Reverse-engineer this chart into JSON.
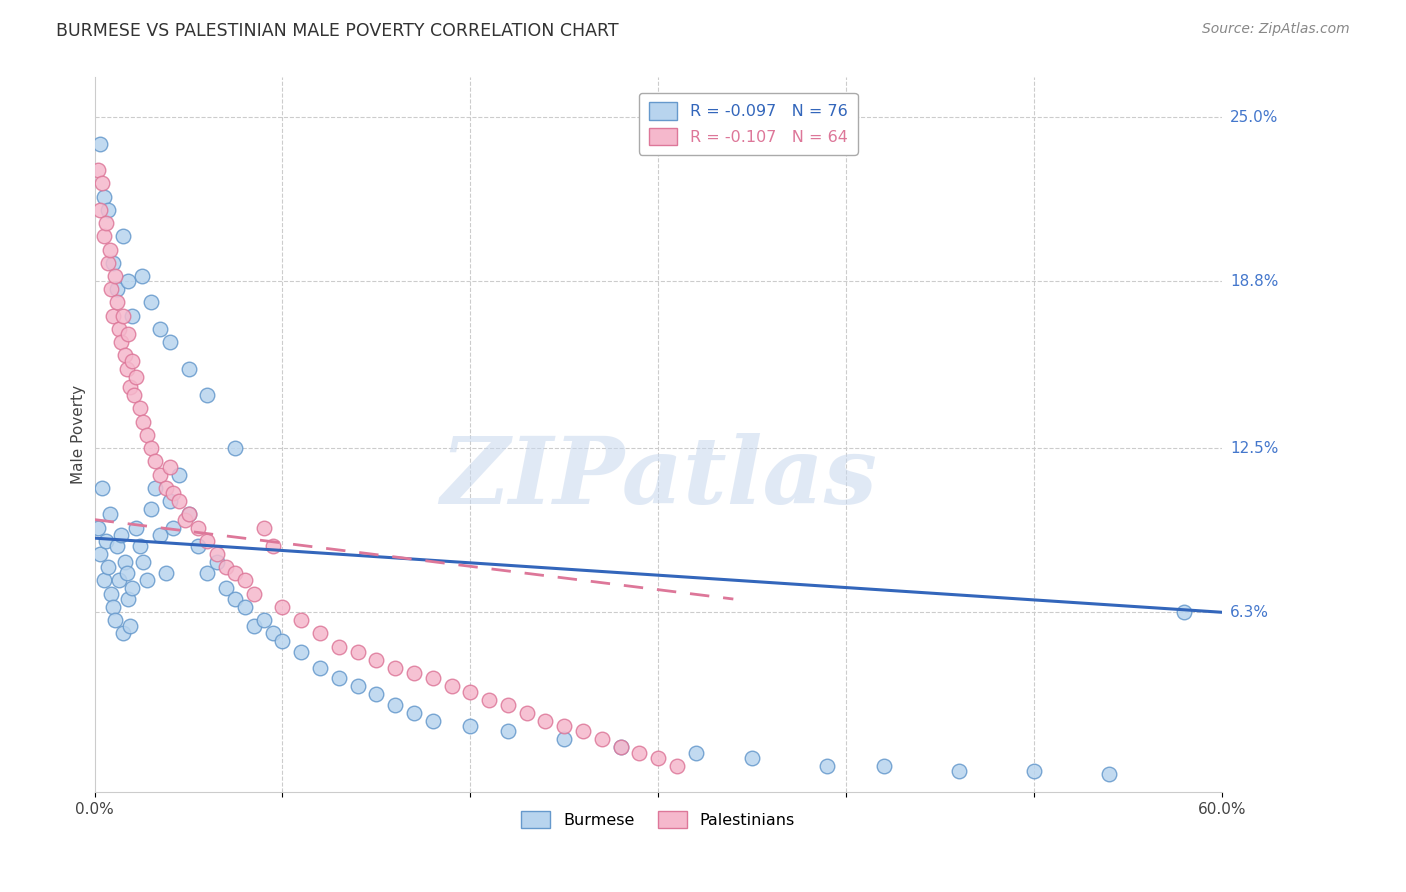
{
  "title": "BURMESE VS PALESTINIAN MALE POVERTY CORRELATION CHART",
  "source": "Source: ZipAtlas.com",
  "ylabel": "Male Poverty",
  "right_yticks": [
    "25.0%",
    "18.8%",
    "12.5%",
    "6.3%"
  ],
  "right_ytick_vals": [
    0.25,
    0.188,
    0.125,
    0.063
  ],
  "xmin": 0.0,
  "xmax": 0.6,
  "ymin": -0.005,
  "ymax": 0.265,
  "watermark_text": "ZIPatlas",
  "burmese_color": "#b8d4ee",
  "burmese_edge": "#6699cc",
  "palestinian_color": "#f5b8cc",
  "palestinian_edge": "#dd7799",
  "line_blue": "#3366bb",
  "line_pink": "#dd7799",
  "legend_r1": "R = -0.097   N = 76",
  "legend_r2": "R = -0.107   N = 64",
  "blue_line_x": [
    0.0,
    0.6
  ],
  "blue_line_y": [
    0.091,
    0.063
  ],
  "pink_line_x": [
    0.0,
    0.34
  ],
  "pink_line_y": [
    0.098,
    0.068
  ],
  "burmese_x": [
    0.002,
    0.003,
    0.004,
    0.005,
    0.006,
    0.007,
    0.008,
    0.009,
    0.01,
    0.011,
    0.012,
    0.013,
    0.014,
    0.015,
    0.016,
    0.017,
    0.018,
    0.019,
    0.02,
    0.022,
    0.024,
    0.026,
    0.028,
    0.03,
    0.032,
    0.035,
    0.038,
    0.04,
    0.042,
    0.045,
    0.05,
    0.055,
    0.06,
    0.065,
    0.07,
    0.075,
    0.08,
    0.085,
    0.09,
    0.095,
    0.1,
    0.11,
    0.12,
    0.13,
    0.14,
    0.15,
    0.16,
    0.17,
    0.18,
    0.2,
    0.22,
    0.25,
    0.28,
    0.32,
    0.35,
    0.39,
    0.42,
    0.46,
    0.5,
    0.54,
    0.58,
    0.003,
    0.005,
    0.007,
    0.01,
    0.012,
    0.015,
    0.018,
    0.02,
    0.025,
    0.03,
    0.035,
    0.04,
    0.05,
    0.06,
    0.075
  ],
  "burmese_y": [
    0.095,
    0.085,
    0.11,
    0.075,
    0.09,
    0.08,
    0.1,
    0.07,
    0.065,
    0.06,
    0.088,
    0.075,
    0.092,
    0.055,
    0.082,
    0.078,
    0.068,
    0.058,
    0.072,
    0.095,
    0.088,
    0.082,
    0.075,
    0.102,
    0.11,
    0.092,
    0.078,
    0.105,
    0.095,
    0.115,
    0.1,
    0.088,
    0.078,
    0.082,
    0.072,
    0.068,
    0.065,
    0.058,
    0.06,
    0.055,
    0.052,
    0.048,
    0.042,
    0.038,
    0.035,
    0.032,
    0.028,
    0.025,
    0.022,
    0.02,
    0.018,
    0.015,
    0.012,
    0.01,
    0.008,
    0.005,
    0.005,
    0.003,
    0.003,
    0.002,
    0.063,
    0.24,
    0.22,
    0.215,
    0.195,
    0.185,
    0.205,
    0.188,
    0.175,
    0.19,
    0.18,
    0.17,
    0.165,
    0.155,
    0.145,
    0.125
  ],
  "palestinian_x": [
    0.002,
    0.003,
    0.004,
    0.005,
    0.006,
    0.007,
    0.008,
    0.009,
    0.01,
    0.011,
    0.012,
    0.013,
    0.014,
    0.015,
    0.016,
    0.017,
    0.018,
    0.019,
    0.02,
    0.021,
    0.022,
    0.024,
    0.026,
    0.028,
    0.03,
    0.032,
    0.035,
    0.038,
    0.04,
    0.042,
    0.045,
    0.048,
    0.05,
    0.055,
    0.06,
    0.065,
    0.07,
    0.075,
    0.08,
    0.085,
    0.09,
    0.095,
    0.1,
    0.11,
    0.12,
    0.13,
    0.14,
    0.15,
    0.16,
    0.17,
    0.18,
    0.19,
    0.2,
    0.21,
    0.22,
    0.23,
    0.24,
    0.25,
    0.26,
    0.27,
    0.28,
    0.29,
    0.3,
    0.31
  ],
  "palestinian_y": [
    0.23,
    0.215,
    0.225,
    0.205,
    0.21,
    0.195,
    0.2,
    0.185,
    0.175,
    0.19,
    0.18,
    0.17,
    0.165,
    0.175,
    0.16,
    0.155,
    0.168,
    0.148,
    0.158,
    0.145,
    0.152,
    0.14,
    0.135,
    0.13,
    0.125,
    0.12,
    0.115,
    0.11,
    0.118,
    0.108,
    0.105,
    0.098,
    0.1,
    0.095,
    0.09,
    0.085,
    0.08,
    0.078,
    0.075,
    0.07,
    0.095,
    0.088,
    0.065,
    0.06,
    0.055,
    0.05,
    0.048,
    0.045,
    0.042,
    0.04,
    0.038,
    0.035,
    0.033,
    0.03,
    0.028,
    0.025,
    0.022,
    0.02,
    0.018,
    0.015,
    0.012,
    0.01,
    0.008,
    0.005
  ]
}
